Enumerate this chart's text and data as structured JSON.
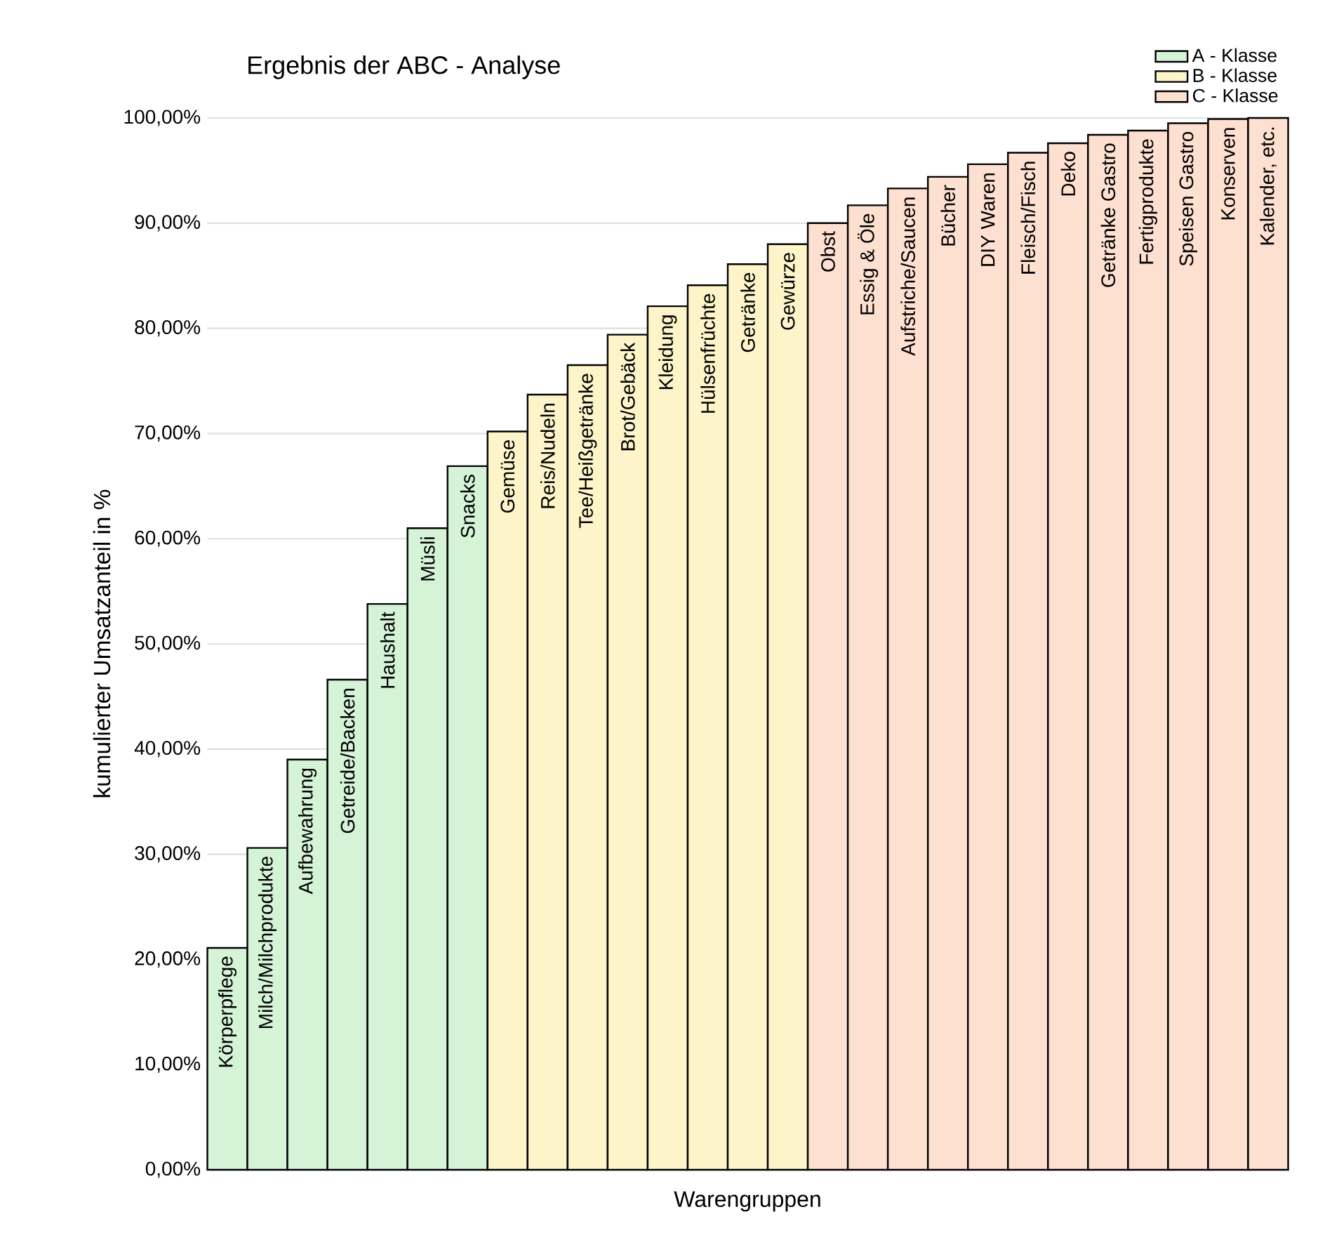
{
  "chart_data": {
    "type": "bar",
    "title": "Ergebnis der ABC - Analyse",
    "xlabel": "Warengruppen",
    "ylabel": "kumulierter Umsatzanteil in %",
    "categories": [
      "Körperpflege",
      "Milch/Milchprodukte",
      "Aufbewahrung",
      "Getreide/Backen",
      "Haushalt",
      "Müsli",
      "Snacks",
      "Gemüse",
      "Reis/Nudeln",
      "Tee/Heißgetränke",
      "Brot/Gebäck",
      "Kleidung",
      "Hülsenfrüchte",
      "Getränke",
      "Gewürze",
      "Obst",
      "Essig & Öle",
      "Aufstriche/Saucen",
      "Bücher",
      "DIY Waren",
      "Fleisch/Fisch",
      "Deko",
      "Getränke Gastro",
      "Fertigprodukte",
      "Speisen Gastro",
      "Konserven",
      "Kalender, etc."
    ],
    "series": [
      {
        "name": "A - Klasse",
        "color": "#d5f4d7",
        "values": [
          21.1,
          30.6,
          39.0,
          46.6,
          53.8,
          61.0,
          66.9,
          null,
          null,
          null,
          null,
          null,
          null,
          null,
          null,
          null,
          null,
          null,
          null,
          null,
          null,
          null,
          null,
          null,
          null,
          null,
          null
        ]
      },
      {
        "name": "B - Klasse",
        "color": "#fdf5c9",
        "values": [
          null,
          null,
          null,
          null,
          null,
          null,
          null,
          70.2,
          73.7,
          76.5,
          79.4,
          82.1,
          84.1,
          86.1,
          88.0,
          null,
          null,
          null,
          null,
          null,
          null,
          null,
          null,
          null,
          null,
          null,
          null
        ]
      },
      {
        "name": "C - Klasse",
        "color": "#fde0d0",
        "values": [
          null,
          null,
          null,
          null,
          null,
          null,
          null,
          null,
          null,
          null,
          null,
          null,
          null,
          null,
          null,
          90.0,
          91.7,
          93.3,
          94.4,
          95.6,
          96.7,
          97.6,
          98.4,
          98.8,
          99.5,
          99.9,
          100.0
        ]
      }
    ],
    "ylim": [
      0,
      100
    ],
    "yticks": [
      {
        "value": 0,
        "label": "0,00%"
      },
      {
        "value": 10,
        "label": "10,00%"
      },
      {
        "value": 20,
        "label": "20,00%"
      },
      {
        "value": 30,
        "label": "30,00%"
      },
      {
        "value": 40,
        "label": "40,00%"
      },
      {
        "value": 50,
        "label": "50,00%"
      },
      {
        "value": 60,
        "label": "60,00%"
      },
      {
        "value": 70,
        "label": "70,00%"
      },
      {
        "value": 80,
        "label": "80,00%"
      },
      {
        "value": 90,
        "label": "90,00%"
      },
      {
        "value": 100,
        "label": "100,00%"
      }
    ],
    "grid": "y",
    "legend": "top right"
  }
}
